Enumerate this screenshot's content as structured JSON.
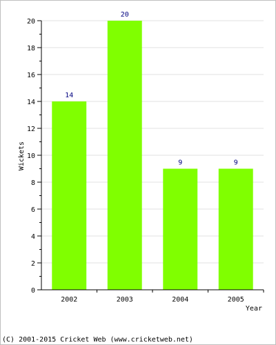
{
  "chart_data": {
    "type": "bar",
    "categories": [
      "2002",
      "2003",
      "2004",
      "2005"
    ],
    "values": [
      14,
      20,
      9,
      9
    ],
    "data_labels": [
      "14",
      "20",
      "9",
      "9"
    ],
    "xlabel": "Year",
    "ylabel": "Wickets",
    "ylim": [
      0,
      20
    ],
    "y_ticks": [
      0,
      2,
      4,
      6,
      8,
      10,
      12,
      14,
      16,
      18,
      20
    ],
    "y_tick_labels": [
      "0",
      "2",
      "4",
      "6",
      "8",
      "10",
      "12",
      "14",
      "16",
      "18",
      "20"
    ],
    "minor_tick_step": 1,
    "grid": true,
    "bar_color": "#80ff00",
    "label_color": "#000080"
  },
  "footer": {
    "credit": "(C) 2001-2015 Cricket Web (www.cricketweb.net)"
  }
}
